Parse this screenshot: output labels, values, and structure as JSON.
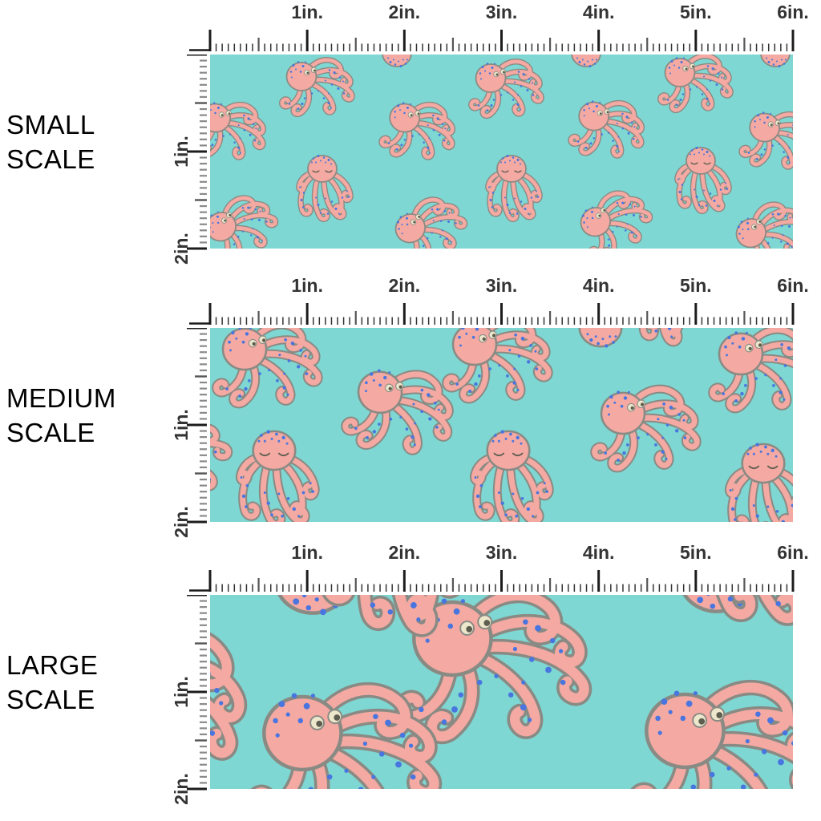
{
  "page": {
    "background": "#ffffff",
    "description": "Fabric pattern scale comparison with inch rulers"
  },
  "sections": [
    {
      "name": "small",
      "label_lines": [
        "SMALL",
        "SCALE"
      ],
      "ruler_inch_labels": [
        "1in.",
        "2in.",
        "3in.",
        "4in.",
        "5in.",
        "6in."
      ],
      "vertical_inch_labels": [
        "1in.",
        "2in."
      ],
      "pattern_scale": 0.5
    },
    {
      "name": "medium",
      "label_lines": [
        "MEDIUM",
        "SCALE"
      ],
      "ruler_inch_labels": [
        "1in.",
        "2in.",
        "3in.",
        "4in.",
        "5in.",
        "6in."
      ],
      "vertical_inch_labels": [
        "1in.",
        "2in."
      ],
      "pattern_scale": 0.73
    },
    {
      "name": "large",
      "label_lines": [
        "LARGE",
        "SCALE"
      ],
      "ruler_inch_labels": [
        "1in.",
        "2in.",
        "3in.",
        "4in.",
        "5in.",
        "6in."
      ],
      "vertical_inch_labels": [
        "1in.",
        "2in."
      ],
      "pattern_scale": 1.3
    }
  ],
  "ruler": {
    "inches_horizontal": 6,
    "inches_vertical": 2,
    "divisions_per_inch": 16,
    "major_tick_color": "#1c1c1c",
    "minor_tick_color": "#555555",
    "fine_tick_color_vertical": "#8a8a8a",
    "label_color": "#333333"
  },
  "swatch": {
    "width_inches": 6,
    "height_inches": 2,
    "background": "#7ED7D2",
    "octopus_body": "#F4A9A2",
    "octopus_outline": "#8A8A84",
    "dot_color": "#4875DF",
    "eye_fill": "#EDE7CC",
    "eye_pupil": "#5E5E50"
  }
}
